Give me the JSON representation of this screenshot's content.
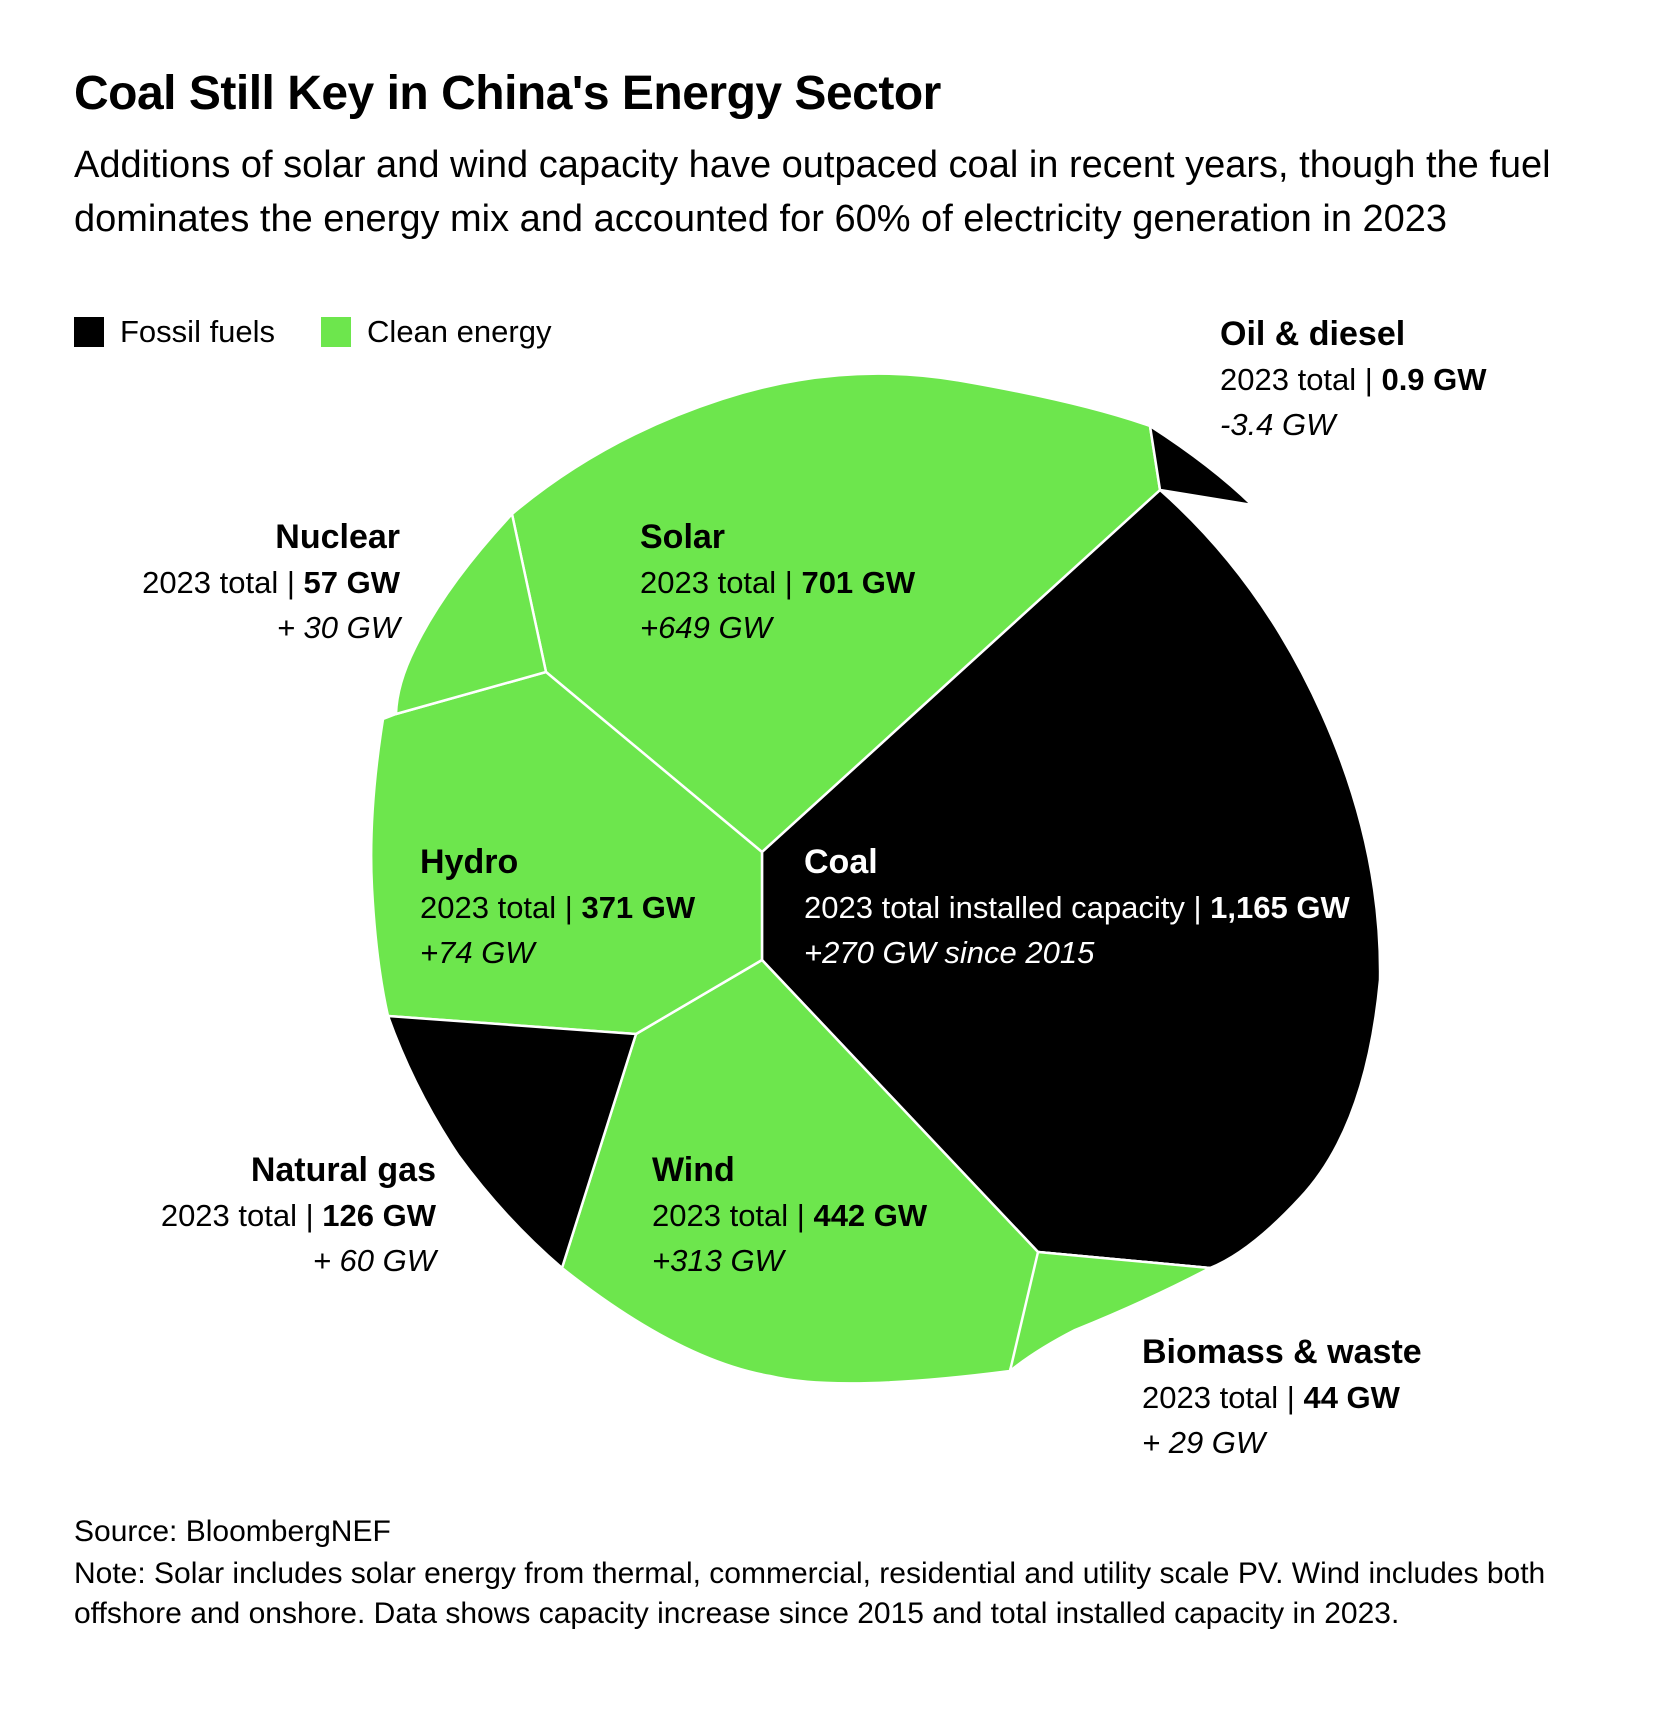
{
  "title": "Coal Still Key in China's Energy Sector",
  "subtitle": "Additions of solar and wind capacity have outpaced coal in recent years, though the fuel dominates the energy mix and accounted for 60% of electricity generation in 2023",
  "legend": [
    {
      "label": "Fossil fuels",
      "color": "#000000"
    },
    {
      "label": "Clean energy",
      "color": "#6de64d"
    }
  ],
  "colors": {
    "fossil": "#000000",
    "clean": "#6de64d",
    "border": "#ffffff"
  },
  "chart_data": {
    "type": "voronoi-treemap",
    "unit": "GW",
    "cells": [
      {
        "name": "Coal",
        "category": "Fossil fuels",
        "prefix": "2023 total installed capacity",
        "total_gw": 1165,
        "total_label": "1,165 GW",
        "change_gw": 270,
        "change_label": "+270 GW since 2015"
      },
      {
        "name": "Solar",
        "category": "Clean energy",
        "prefix": "2023 total",
        "total_gw": 701,
        "total_label": "701 GW",
        "change_gw": 649,
        "change_label": "+649 GW"
      },
      {
        "name": "Wind",
        "category": "Clean energy",
        "prefix": "2023 total",
        "total_gw": 442,
        "total_label": "442 GW",
        "change_gw": 313,
        "change_label": "+313 GW"
      },
      {
        "name": "Hydro",
        "category": "Clean energy",
        "prefix": "2023 total",
        "total_gw": 371,
        "total_label": "371 GW",
        "change_gw": 74,
        "change_label": "+74 GW"
      },
      {
        "name": "Natural gas",
        "category": "Fossil fuels",
        "prefix": "2023 total",
        "total_gw": 126,
        "total_label": "126 GW",
        "change_gw": 60,
        "change_label": "+ 60 GW"
      },
      {
        "name": "Nuclear",
        "category": "Clean energy",
        "prefix": "2023 total",
        "total_gw": 57,
        "total_label": "57 GW",
        "change_gw": 30,
        "change_label": "+ 30 GW"
      },
      {
        "name": "Biomass & waste",
        "category": "Clean energy",
        "prefix": "2023 total",
        "total_gw": 44,
        "total_label": "44 GW",
        "change_gw": 29,
        "change_label": "+ 29 GW"
      },
      {
        "name": "Oil & diesel",
        "category": "Fossil fuels",
        "prefix": "2023 total",
        "total_gw": 0.9,
        "total_label": "0.9 GW",
        "change_gw": -3.4,
        "change_label": "-3.4 GW"
      }
    ]
  },
  "source": "Source: BloombergNEF",
  "note": "Note: Solar includes solar energy from thermal, commercial, residential and utility scale PV. Wind includes both offshore and onshore. Data shows capacity increase since 2015 and total installed capacity in 2023."
}
